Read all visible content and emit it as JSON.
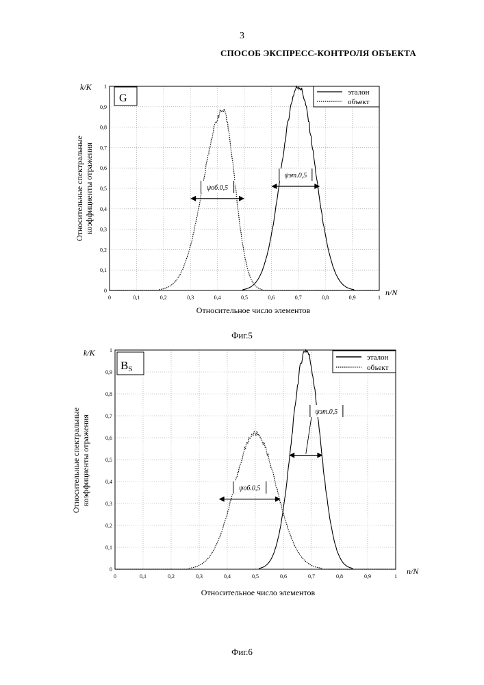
{
  "page": {
    "number": "3",
    "title": "СПОСОБ ЭКСПРЕСС-КОНТРОЛЯ ОБЪЕКТА"
  },
  "figures": [
    {
      "caption": "Фиг.5",
      "panel_label": "G",
      "panel_label_sub": "",
      "xlabel": "Относительное число элементов",
      "ylabel_line1": "Относительные спектральные",
      "ylabel_line2": "коэффициенты отражения",
      "x_unit": "n/N",
      "y_unit": "k/K",
      "legend": [
        "эталон",
        "объект"
      ],
      "annot_obj": "ψоб.0,5",
      "annot_et": "ψэт.0,5"
    },
    {
      "caption": "Фиг.6",
      "panel_label": "B",
      "panel_label_sub": "S",
      "xlabel": "Относительное число элементов",
      "ylabel_line1": "Относительные спектральные",
      "ylabel_line2": "коэффициенты отражения",
      "x_unit": "n/N",
      "y_unit": "k/K",
      "legend": [
        "эталон",
        "объект"
      ],
      "annot_obj": "ψоб.0,5",
      "annot_et": "ψэт.0,5"
    }
  ],
  "chart_data": [
    {
      "type": "line",
      "xlim": [
        0,
        1
      ],
      "ylim": [
        0,
        1
      ],
      "xticks": [
        "0",
        "0,1",
        "0,2",
        "0,3",
        "0,4",
        "0,5",
        "0,6",
        "0,7",
        "0,8",
        "0,9",
        "1"
      ],
      "yticks": [
        "0",
        "0,1",
        "0,2",
        "0,3",
        "0,4",
        "0,5",
        "0,6",
        "0,7",
        "0,8",
        "0,9",
        "1"
      ],
      "grid": true,
      "legend_position": "top-right",
      "series": [
        {
          "name": "эталон",
          "style": "solid",
          "peak_x": 0.7,
          "peak_y": 1.0,
          "sigma": 0.062,
          "x": [
            0.4,
            0.45,
            0.5,
            0.55,
            0.6,
            0.65,
            0.7,
            0.75,
            0.8,
            0.85,
            0.9
          ],
          "y": [
            0.0,
            0.03,
            0.08,
            0.22,
            0.5,
            0.84,
            1.0,
            0.84,
            0.5,
            0.1,
            0.0
          ]
        },
        {
          "name": "объект",
          "style": "dotted",
          "peak_x": 0.42,
          "peak_y": 0.88,
          "sigma": 0.072,
          "x": [
            0.1,
            0.2,
            0.3,
            0.35,
            0.4,
            0.42,
            0.45,
            0.5,
            0.55,
            0.6
          ],
          "y": [
            0.0,
            0.06,
            0.44,
            0.72,
            0.86,
            0.88,
            0.82,
            0.44,
            0.18,
            0.0
          ]
        }
      ],
      "annotations": [
        {
          "label": "ψоб.0,5",
          "x_from": 0.3,
          "x_to": 0.5,
          "y": 0.45
        },
        {
          "label": "ψэт.0,5",
          "x_from": 0.6,
          "x_to": 0.78,
          "y": 0.51
        }
      ]
    },
    {
      "type": "line",
      "xlim": [
        0,
        1
      ],
      "ylim": [
        0,
        1
      ],
      "xticks": [
        "0",
        "0,1",
        "0,2",
        "0,3",
        "0,4",
        "0,5",
        "0,6",
        "0,7",
        "0,8",
        "0,9",
        "1"
      ],
      "yticks": [
        "0",
        "0,1",
        "0,2",
        "0,3",
        "0,4",
        "0,5",
        "0,6",
        "0,7",
        "0,8",
        "0,9",
        "1"
      ],
      "grid": true,
      "legend_position": "top-right",
      "series": [
        {
          "name": "эталон",
          "style": "solid",
          "peak_x": 0.68,
          "peak_y": 1.0,
          "sigma": 0.05,
          "x": [
            0.4,
            0.5,
            0.55,
            0.6,
            0.65,
            0.68,
            0.7,
            0.75,
            0.8
          ],
          "y": [
            0.0,
            0.06,
            0.18,
            0.4,
            0.82,
            1.0,
            0.95,
            0.52,
            0.0
          ]
        },
        {
          "name": "объект",
          "style": "dotted",
          "peak_x": 0.5,
          "peak_y": 0.62,
          "sigma": 0.075,
          "x": [
            0.2,
            0.3,
            0.37,
            0.45,
            0.5,
            0.55,
            0.58,
            0.65,
            0.7
          ],
          "y": [
            0.0,
            0.08,
            0.32,
            0.56,
            0.62,
            0.52,
            0.32,
            0.06,
            0.0
          ]
        }
      ],
      "annotations": [
        {
          "label": "ψоб.0,5",
          "x_from": 0.37,
          "x_to": 0.59,
          "y": 0.32
        },
        {
          "label": "ψэт.0,5",
          "x_from": 0.62,
          "x_to": 0.74,
          "y": 0.52
        }
      ]
    }
  ]
}
